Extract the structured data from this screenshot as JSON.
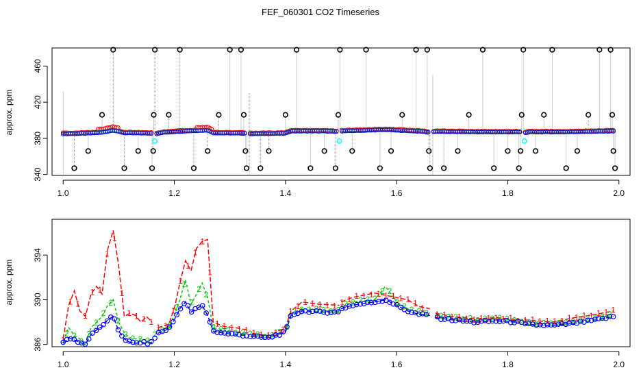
{
  "title": "FEF_060301  CO2 Timeseries",
  "colors": {
    "series1": "#ff0000",
    "series2": "#00cc00",
    "series3": "#0000ff",
    "outlier": "#000000",
    "flagged": "#00ffff",
    "spike": "#999999"
  },
  "chart_data": [
    {
      "type": "scatter",
      "panel": "top",
      "ylabel": "approx. ppm",
      "xlim": [
        0.98,
        2.02
      ],
      "ylim": [
        339,
        480
      ],
      "xticks": [
        1.0,
        1.2,
        1.4,
        1.6,
        1.8,
        2.0
      ],
      "xtick_labels": [
        "1.0",
        "1.2",
        "1.4",
        "1.6",
        "1.8",
        "2.0"
      ],
      "yticks": [
        340,
        380,
        420,
        460
      ],
      "ytick_labels": [
        "340",
        "380",
        "420",
        "460"
      ],
      "baseline": [
        [
          1.0,
          385
        ],
        [
          1.04,
          385.5
        ],
        [
          1.07,
          386.5
        ],
        [
          1.09,
          389
        ],
        [
          1.11,
          386
        ],
        [
          1.14,
          385.8
        ],
        [
          1.16,
          385.5
        ],
        [
          1.165,
          384.5
        ],
        [
          1.18,
          386.5
        ],
        [
          1.22,
          388
        ],
        [
          1.26,
          389
        ],
        [
          1.27,
          386
        ],
        [
          1.33,
          385.5
        ],
        [
          1.335,
          385
        ],
        [
          1.4,
          385.5
        ],
        [
          1.41,
          388
        ],
        [
          1.47,
          388
        ],
        [
          1.49,
          387.5
        ],
        [
          1.5,
          388
        ],
        [
          1.58,
          389.5
        ],
        [
          1.65,
          387.5
        ],
        [
          1.655,
          386.5
        ],
        [
          1.67,
          387.5
        ],
        [
          1.75,
          387
        ],
        [
          1.82,
          387
        ],
        [
          1.83,
          386
        ],
        [
          1.84,
          387
        ],
        [
          1.9,
          387
        ],
        [
          1.99,
          388
        ]
      ],
      "gaps": [
        1.163,
        1.333,
        1.497,
        1.663,
        1.828
      ],
      "outliers": [
        [
          1.02,
          347
        ],
        [
          1.045,
          366
        ],
        [
          1.07,
          406
        ],
        [
          1.09,
          478
        ],
        [
          1.11,
          347
        ],
        [
          1.135,
          366
        ],
        [
          1.16,
          347
        ],
        [
          1.162,
          366
        ],
        [
          1.163,
          406
        ],
        [
          1.165,
          478
        ],
        [
          1.19,
          406
        ],
        [
          1.21,
          478
        ],
        [
          1.235,
          347
        ],
        [
          1.26,
          366
        ],
        [
          1.28,
          406
        ],
        [
          1.3,
          478
        ],
        [
          1.32,
          478
        ],
        [
          1.325,
          406
        ],
        [
          1.328,
          366
        ],
        [
          1.33,
          347
        ],
        [
          1.355,
          347
        ],
        [
          1.37,
          366
        ],
        [
          1.4,
          406
        ],
        [
          1.42,
          478
        ],
        [
          1.445,
          347
        ],
        [
          1.47,
          366
        ],
        [
          1.49,
          347
        ],
        [
          1.495,
          406
        ],
        [
          1.498,
          478
        ],
        [
          1.52,
          366
        ],
        [
          1.545,
          478
        ],
        [
          1.57,
          347
        ],
        [
          1.59,
          366
        ],
        [
          1.61,
          406
        ],
        [
          1.635,
          478
        ],
        [
          1.655,
          478
        ],
        [
          1.658,
          366
        ],
        [
          1.66,
          347
        ],
        [
          1.685,
          347
        ],
        [
          1.71,
          366
        ],
        [
          1.73,
          406
        ],
        [
          1.755,
          478
        ],
        [
          1.775,
          347
        ],
        [
          1.8,
          366
        ],
        [
          1.82,
          347
        ],
        [
          1.823,
          366
        ],
        [
          1.825,
          406
        ],
        [
          1.828,
          478
        ],
        [
          1.85,
          366
        ],
        [
          1.865,
          406
        ],
        [
          1.88,
          478
        ],
        [
          1.905,
          347
        ],
        [
          1.925,
          366
        ],
        [
          1.945,
          406
        ],
        [
          1.965,
          478
        ],
        [
          1.985,
          478
        ],
        [
          1.988,
          406
        ],
        [
          1.99,
          366
        ],
        [
          1.993,
          347
        ]
      ],
      "flagged": [
        [
          1.165,
          377
        ],
        [
          1.497,
          377
        ],
        [
          1.83,
          377
        ]
      ],
      "spikes": [
        [
          1.0,
          432
        ],
        [
          1.0,
          340
        ],
        [
          1.335,
          430
        ],
        [
          1.335,
          340
        ],
        [
          1.665,
          450
        ],
        [
          1.665,
          340
        ]
      ]
    },
    {
      "type": "line",
      "panel": "bottom",
      "ylabel": "approx. ppm",
      "xlim": [
        0.98,
        2.02
      ],
      "ylim": [
        385.8,
        397.2
      ],
      "xticks": [
        1.0,
        1.2,
        1.4,
        1.6,
        1.8,
        2.0
      ],
      "xtick_labels": [
        "1.0",
        "1.2",
        "1.4",
        "1.6",
        "1.8",
        "2.0"
      ],
      "yticks": [
        386,
        390,
        394
      ],
      "ytick_labels": [
        "386",
        "390",
        "394"
      ],
      "segments": [
        [
          1.0,
          1.16
        ],
        [
          1.165,
          1.33
        ],
        [
          1.335,
          1.497
        ],
        [
          1.5,
          1.66
        ],
        [
          1.67,
          1.825
        ],
        [
          1.83,
          1.99
        ]
      ],
      "series": [
        {
          "name": "1",
          "marker": "1",
          "points": [
            [
              1.0,
              386.5
            ],
            [
              1.01,
              389.5
            ],
            [
              1.02,
              390.8
            ],
            [
              1.03,
              389
            ],
            [
              1.04,
              388.5
            ],
            [
              1.05,
              390.5
            ],
            [
              1.06,
              391.2
            ],
            [
              1.07,
              390.5
            ],
            [
              1.08,
              394.5
            ],
            [
              1.09,
              396.2
            ],
            [
              1.1,
              393
            ],
            [
              1.11,
              388.5
            ],
            [
              1.12,
              388.8
            ],
            [
              1.13,
              388.6
            ],
            [
              1.14,
              388
            ],
            [
              1.15,
              388.5
            ],
            [
              1.16,
              388
            ],
            [
              1.17,
              387.5
            ],
            [
              1.19,
              387.8
            ],
            [
              1.2,
              389.2
            ],
            [
              1.21,
              391.5
            ],
            [
              1.22,
              393.5
            ],
            [
              1.23,
              392.6
            ],
            [
              1.24,
              394.6
            ],
            [
              1.25,
              395.2
            ],
            [
              1.26,
              395.4
            ],
            [
              1.27,
              388
            ],
            [
              1.29,
              387.6
            ],
            [
              1.31,
              387.5
            ],
            [
              1.33,
              387.3
            ],
            [
              1.34,
              387
            ],
            [
              1.37,
              386.8
            ],
            [
              1.4,
              387.5
            ],
            [
              1.41,
              389
            ],
            [
              1.43,
              389.8
            ],
            [
              1.46,
              389.6
            ],
            [
              1.497,
              389.5
            ],
            [
              1.5,
              389.8
            ],
            [
              1.52,
              390.2
            ],
            [
              1.56,
              390.6
            ],
            [
              1.58,
              390.4
            ],
            [
              1.6,
              390.2
            ],
            [
              1.62,
              390
            ],
            [
              1.64,
              389.4
            ],
            [
              1.66,
              389.2
            ],
            [
              1.67,
              388.8
            ],
            [
              1.7,
              388.5
            ],
            [
              1.74,
              388.3
            ],
            [
              1.78,
              388.4
            ],
            [
              1.82,
              388.2
            ],
            [
              1.83,
              388.2
            ],
            [
              1.88,
              388
            ],
            [
              1.92,
              388.4
            ],
            [
              1.96,
              388.7
            ],
            [
              1.99,
              389
            ]
          ]
        },
        {
          "name": "2",
          "marker": "2",
          "points": [
            [
              1.0,
              386.3
            ],
            [
              1.01,
              387.5
            ],
            [
              1.02,
              386.8
            ],
            [
              1.03,
              386.5
            ],
            [
              1.04,
              386
            ],
            [
              1.05,
              387.5
            ],
            [
              1.06,
              388
            ],
            [
              1.07,
              388.5
            ],
            [
              1.08,
              389.5
            ],
            [
              1.09,
              390
            ],
            [
              1.1,
              388
            ],
            [
              1.11,
              387
            ],
            [
              1.12,
              386.6
            ],
            [
              1.13,
              386.5
            ],
            [
              1.14,
              386.5
            ],
            [
              1.15,
              386.4
            ],
            [
              1.16,
              386.4
            ],
            [
              1.17,
              387.2
            ],
            [
              1.19,
              387.6
            ],
            [
              1.2,
              388.6
            ],
            [
              1.21,
              390
            ],
            [
              1.22,
              391.8
            ],
            [
              1.23,
              389.6
            ],
            [
              1.24,
              390.5
            ],
            [
              1.25,
              391.5
            ],
            [
              1.26,
              390.2
            ],
            [
              1.27,
              387.5
            ],
            [
              1.29,
              387.3
            ],
            [
              1.31,
              387.1
            ],
            [
              1.33,
              387
            ],
            [
              1.34,
              386.9
            ],
            [
              1.37,
              386.7
            ],
            [
              1.4,
              387.2
            ],
            [
              1.41,
              388.8
            ],
            [
              1.43,
              389.2
            ],
            [
              1.46,
              389.1
            ],
            [
              1.497,
              389
            ],
            [
              1.5,
              389.5
            ],
            [
              1.52,
              389.8
            ],
            [
              1.56,
              390
            ],
            [
              1.58,
              391.2
            ],
            [
              1.6,
              389.8
            ],
            [
              1.62,
              389.2
            ],
            [
              1.64,
              388.9
            ],
            [
              1.66,
              388.8
            ],
            [
              1.67,
              388.6
            ],
            [
              1.7,
              388.4
            ],
            [
              1.74,
              388.2
            ],
            [
              1.78,
              388.3
            ],
            [
              1.82,
              388.1
            ],
            [
              1.83,
              388
            ],
            [
              1.88,
              387.8
            ],
            [
              1.92,
              388.1
            ],
            [
              1.96,
              388.4
            ],
            [
              1.99,
              388.7
            ]
          ]
        },
        {
          "name": "3",
          "marker": "o",
          "points": [
            [
              1.0,
              386.1
            ],
            [
              1.01,
              386.6
            ],
            [
              1.02,
              386.4
            ],
            [
              1.03,
              386.2
            ],
            [
              1.04,
              386
            ],
            [
              1.05,
              386.9
            ],
            [
              1.06,
              387.3
            ],
            [
              1.07,
              387.6
            ],
            [
              1.08,
              388.2
            ],
            [
              1.09,
              388.5
            ],
            [
              1.1,
              387.2
            ],
            [
              1.11,
              386.5
            ],
            [
              1.12,
              386.2
            ],
            [
              1.13,
              386.1
            ],
            [
              1.14,
              386.2
            ],
            [
              1.15,
              386.1
            ],
            [
              1.16,
              386.2
            ],
            [
              1.17,
              387
            ],
            [
              1.19,
              387.4
            ],
            [
              1.2,
              388.2
            ],
            [
              1.21,
              389.2
            ],
            [
              1.22,
              389.8
            ],
            [
              1.23,
              388.9
            ],
            [
              1.24,
              389.2
            ],
            [
              1.25,
              389.5
            ],
            [
              1.26,
              388.6
            ],
            [
              1.27,
              387.2
            ],
            [
              1.29,
              387
            ],
            [
              1.31,
              386.9
            ],
            [
              1.33,
              386.8
            ],
            [
              1.34,
              386.7
            ],
            [
              1.37,
              386.6
            ],
            [
              1.4,
              387.1
            ],
            [
              1.41,
              388.6
            ],
            [
              1.43,
              389
            ],
            [
              1.46,
              388.9
            ],
            [
              1.497,
              388.9
            ],
            [
              1.5,
              389.2
            ],
            [
              1.52,
              389.5
            ],
            [
              1.56,
              389.8
            ],
            [
              1.58,
              390
            ],
            [
              1.6,
              389.5
            ],
            [
              1.62,
              389
            ],
            [
              1.64,
              388.7
            ],
            [
              1.66,
              388.6
            ],
            [
              1.67,
              388.4
            ],
            [
              1.7,
              388.2
            ],
            [
              1.74,
              388
            ],
            [
              1.78,
              388.1
            ],
            [
              1.82,
              388
            ],
            [
              1.83,
              387.8
            ],
            [
              1.88,
              387.7
            ],
            [
              1.92,
              387.9
            ],
            [
              1.96,
              388.2
            ],
            [
              1.99,
              388.5
            ]
          ]
        }
      ]
    }
  ]
}
